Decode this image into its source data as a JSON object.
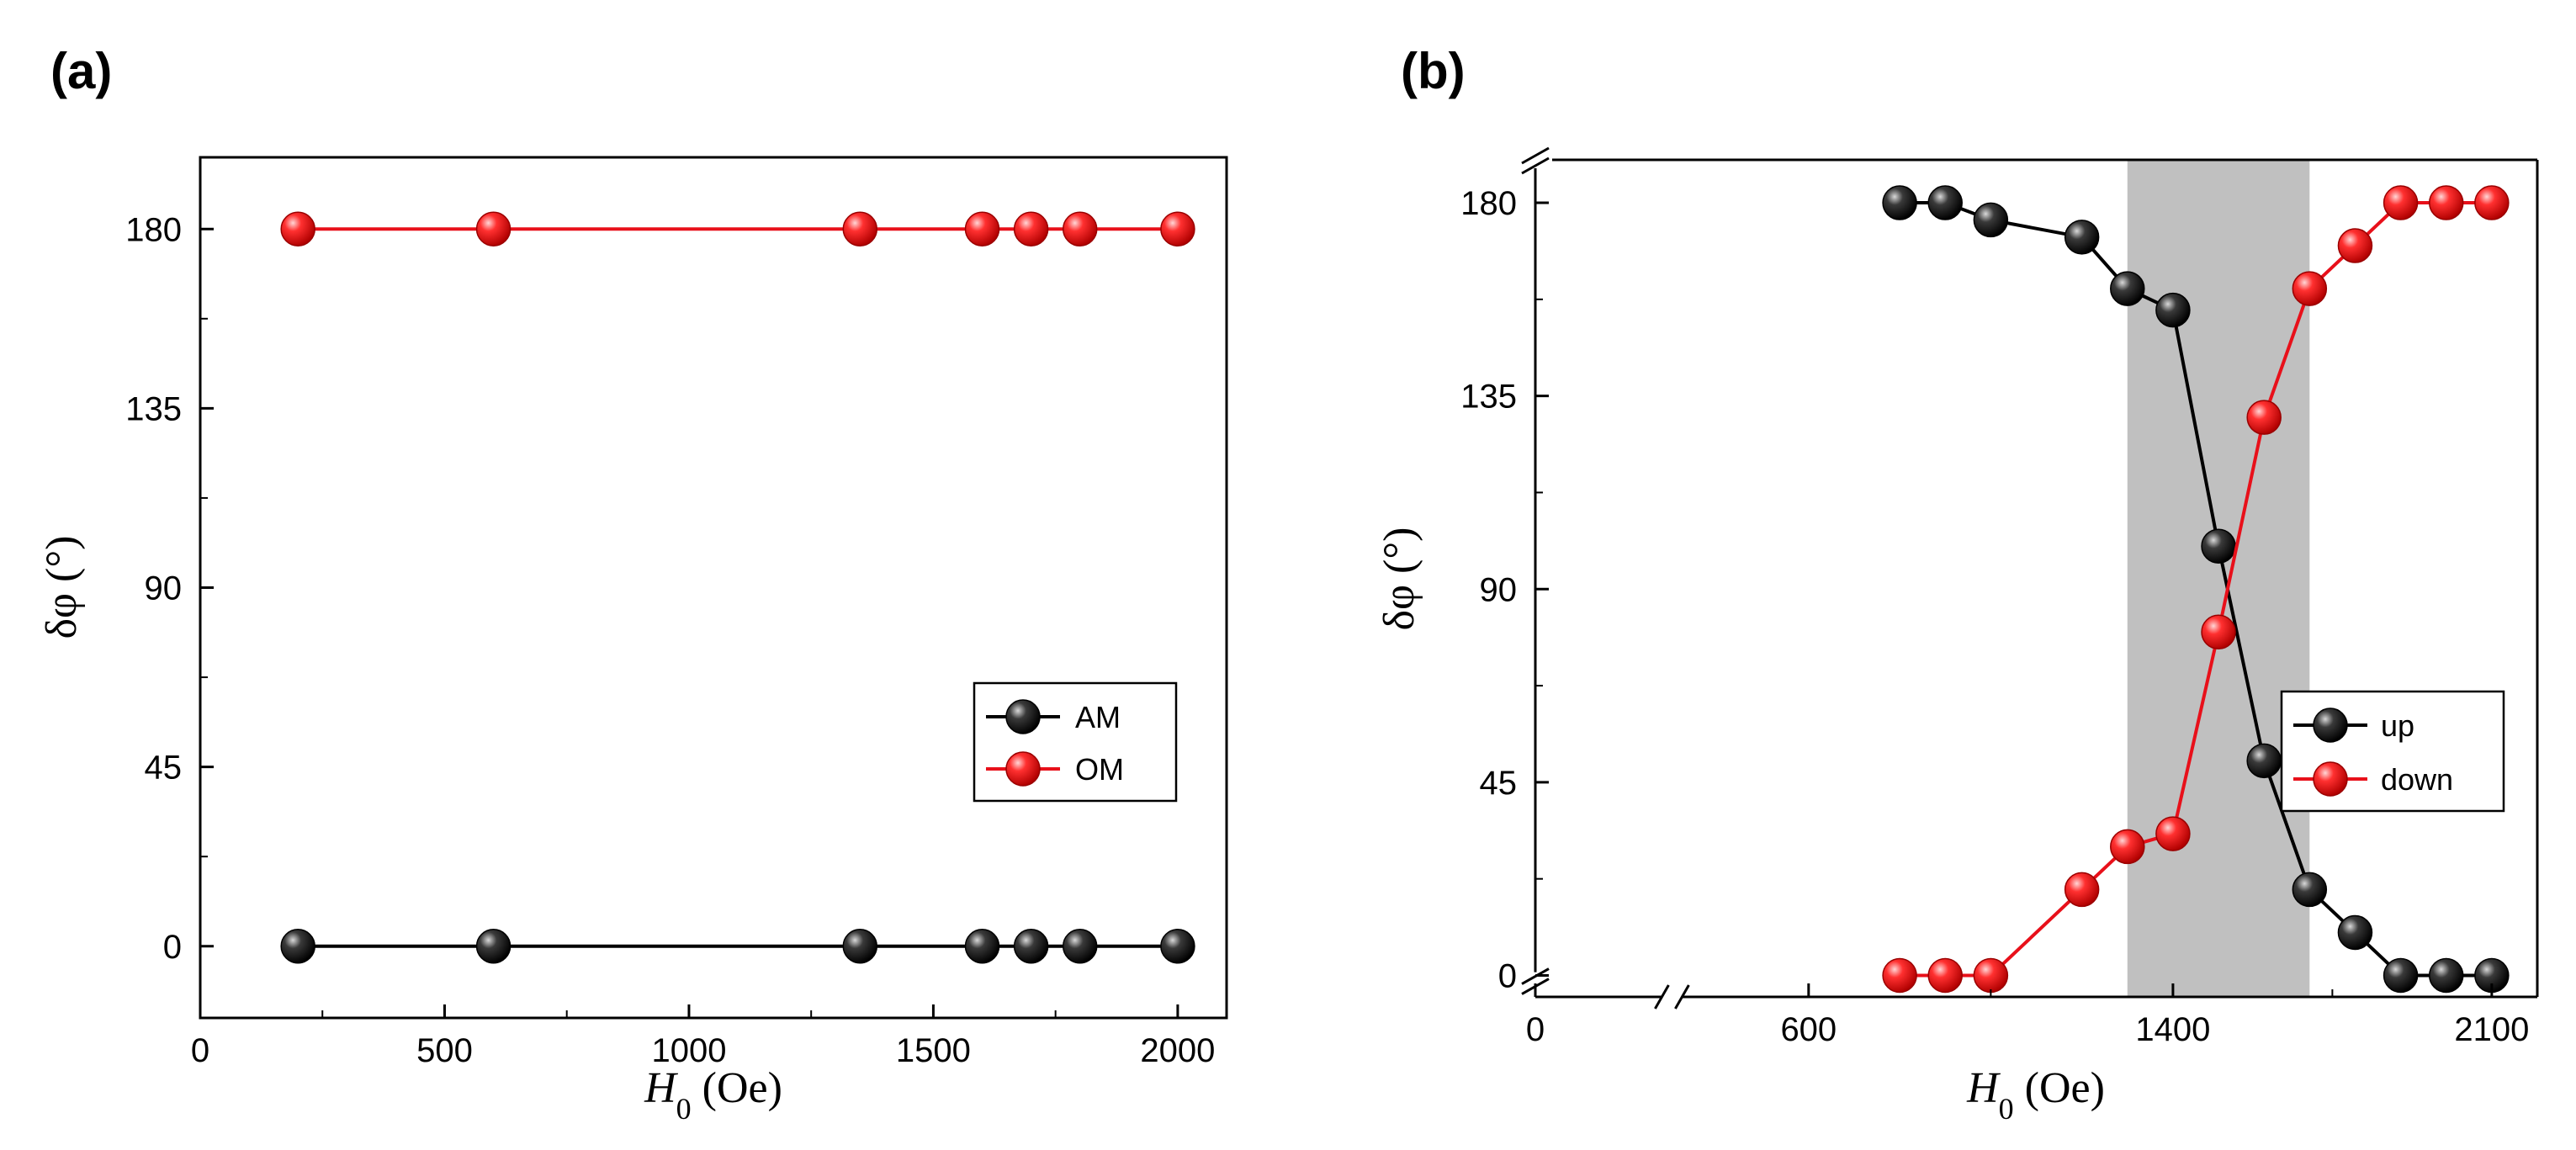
{
  "chart_data": [
    {
      "panel_label": "(a)",
      "type": "line",
      "xlabel_var": "H",
      "xlabel_sub": "0",
      "xlabel_unit": " (Oe)",
      "ylabel": "δφ (°)",
      "xlim": [
        0,
        2100
      ],
      "ylim": [
        -18,
        198
      ],
      "xticks": [
        0,
        500,
        1000,
        1500,
        2000
      ],
      "yticks": [
        0,
        45,
        90,
        135,
        180
      ],
      "xtick_labels": [
        "0",
        "500",
        "1000",
        "1500",
        "2000"
      ],
      "ytick_labels": [
        "0",
        "45",
        "90",
        "135",
        "180"
      ],
      "x": [
        200,
        600,
        1350,
        1600,
        1700,
        1800,
        2000
      ],
      "series": [
        {
          "name": "AM",
          "color": "#000000",
          "values": [
            0,
            0,
            0,
            0,
            0,
            0,
            0
          ]
        },
        {
          "name": "OM",
          "color": "#e8101a",
          "values": [
            180,
            180,
            180,
            180,
            180,
            180,
            180
          ]
        }
      ],
      "legend_placement": "center-right"
    },
    {
      "panel_label": "(b)",
      "type": "line",
      "xlabel_var": "H",
      "xlabel_sub": "0",
      "xlabel_unit": " (Oe)",
      "ylabel": "δφ (°)",
      "xlim": [
        0,
        2200
      ],
      "ylim": [
        -5,
        190
      ],
      "axis_break": "x between 0 and 600, y below 0",
      "shaded_region_x": [
        1300,
        1700
      ],
      "xticks": [
        0,
        600,
        1400,
        2100
      ],
      "yticks": [
        0,
        45,
        90,
        135,
        180
      ],
      "xtick_labels": [
        "0",
        "600",
        "1400",
        "2100"
      ],
      "ytick_labels": [
        "0",
        "45",
        "90",
        "135",
        "180"
      ],
      "series": [
        {
          "name": "up",
          "color": "#000000",
          "x": [
            800,
            900,
            1000,
            1200,
            1300,
            1400,
            1500,
            1600,
            1700,
            1800,
            1900,
            2000,
            2100
          ],
          "values": [
            180,
            180,
            176,
            172,
            160,
            155,
            100,
            50,
            20,
            10,
            0,
            0,
            0
          ]
        },
        {
          "name": "down",
          "color": "#e8101a",
          "x": [
            800,
            900,
            1000,
            1200,
            1300,
            1400,
            1500,
            1600,
            1700,
            1800,
            1900,
            2000,
            2100
          ],
          "values": [
            0,
            0,
            0,
            20,
            30,
            33,
            80,
            130,
            160,
            170,
            180,
            180,
            180
          ]
        }
      ],
      "legend_placement": "center-right"
    }
  ]
}
